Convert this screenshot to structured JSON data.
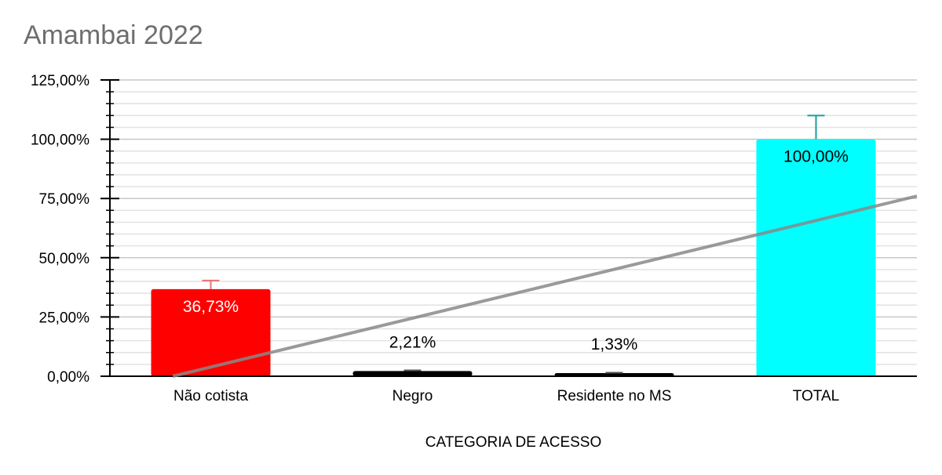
{
  "chart_data": {
    "type": "bar",
    "title": "Amambai 2022",
    "xlabel": "CATEGORIA  DE ACESSO",
    "ylabel": "",
    "categories": [
      "Não cotista",
      "Negro",
      "Residente no MS",
      "TOTAL"
    ],
    "values": [
      36.73,
      2.21,
      1.33,
      100.0
    ],
    "data_labels": [
      "36,73%",
      "2,21%",
      "1,33%",
      "100,00%"
    ],
    "error_bar_upper": [
      40.4,
      2.5,
      1.5,
      110.0
    ],
    "bar_colors": [
      "#ff0000",
      "#000000",
      "#000000",
      "#00ffff"
    ],
    "error_bar_colors": [
      "#e57373",
      "#555555",
      "#555555",
      "#1a9e9e"
    ],
    "label_colors": [
      "#ffffff",
      "#000000",
      "#000000",
      "#000000"
    ],
    "ylim": [
      0,
      125
    ],
    "y_ticks": [
      0,
      25,
      50,
      75,
      100,
      125
    ],
    "y_tick_labels": [
      "0,00%",
      "25,00%",
      "50,00%",
      "75,00%",
      "100,00%",
      "125,00%"
    ],
    "trendline": {
      "type": "linear",
      "start_value": 0,
      "end_value": 76,
      "color": "#888888"
    },
    "grid": true,
    "legend": "none"
  }
}
